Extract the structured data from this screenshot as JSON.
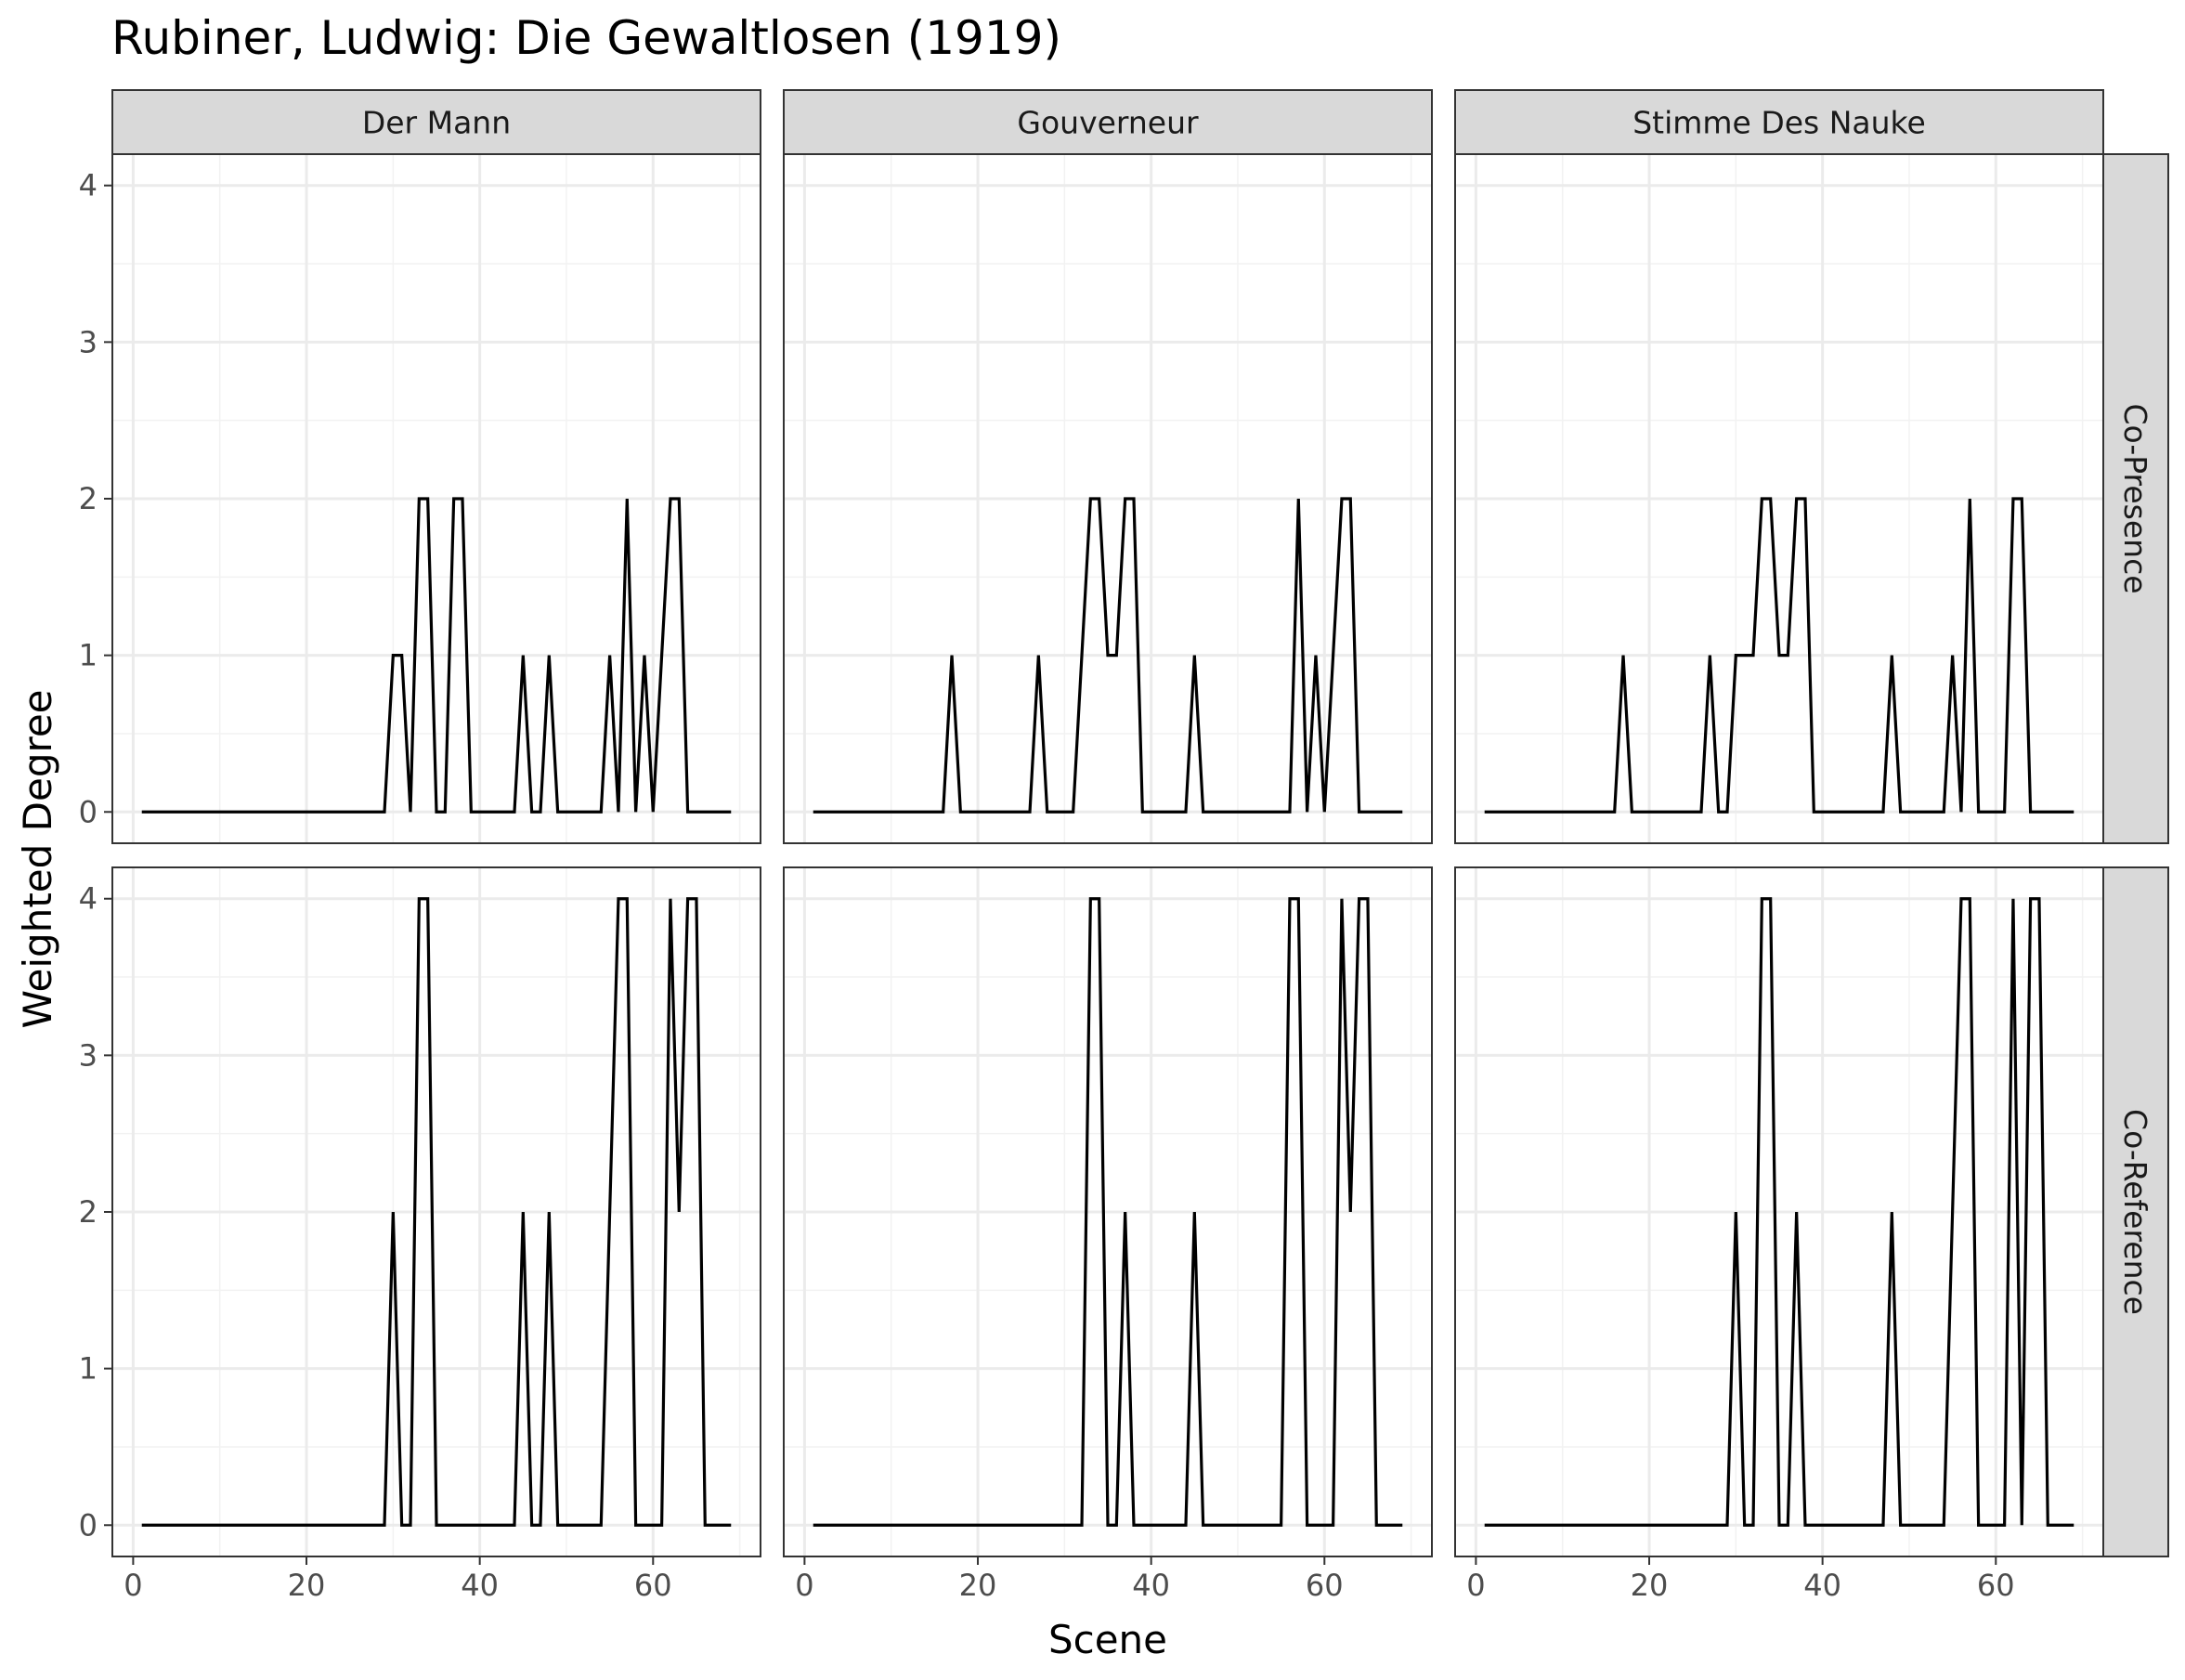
{
  "chart_data": {
    "type": "line",
    "title": "Rubiner, Ludwig: Die Gewaltlosen (1919)",
    "xlabel": "Scene",
    "ylabel": "Weighted Degree",
    "xlim": [
      1,
      69
    ],
    "ylim": [
      0,
      4
    ],
    "xticks": [
      0,
      20,
      40,
      60
    ],
    "yticks": [
      0,
      1,
      2,
      3,
      4
    ],
    "grid": true,
    "columns": [
      "Der Mann",
      "Gouverneur",
      "Stimme Des Nauke"
    ],
    "rows": [
      "Co-Presence",
      "Co-Reference"
    ],
    "panels": [
      {
        "column": "Der Mann",
        "row": "Co-Presence",
        "points": [
          [
            1,
            0
          ],
          [
            29,
            0
          ],
          [
            30,
            1
          ],
          [
            31,
            1
          ],
          [
            32,
            0
          ],
          [
            33,
            2
          ],
          [
            34,
            2
          ],
          [
            35,
            0
          ],
          [
            36,
            0
          ],
          [
            37,
            2
          ],
          [
            38,
            2
          ],
          [
            39,
            0
          ],
          [
            44,
            0
          ],
          [
            45,
            1
          ],
          [
            46,
            0
          ],
          [
            47,
            0
          ],
          [
            48,
            1
          ],
          [
            49,
            0
          ],
          [
            54,
            0
          ],
          [
            55,
            1
          ],
          [
            56,
            0
          ],
          [
            57,
            2
          ],
          [
            58,
            0
          ],
          [
            59,
            1
          ],
          [
            60,
            0
          ],
          [
            61,
            1
          ],
          [
            62,
            2
          ],
          [
            63,
            2
          ],
          [
            64,
            0
          ],
          [
            69,
            0
          ]
        ]
      },
      {
        "column": "Gouverneur",
        "row": "Co-Presence",
        "points": [
          [
            1,
            0
          ],
          [
            16,
            0
          ],
          [
            17,
            1
          ],
          [
            18,
            0
          ],
          [
            26,
            0
          ],
          [
            27,
            1
          ],
          [
            28,
            0
          ],
          [
            31,
            0
          ],
          [
            32,
            1
          ],
          [
            33,
            2
          ],
          [
            34,
            2
          ],
          [
            35,
            1
          ],
          [
            36,
            1
          ],
          [
            37,
            2
          ],
          [
            38,
            2
          ],
          [
            39,
            0
          ],
          [
            44,
            0
          ],
          [
            45,
            1
          ],
          [
            46,
            0
          ],
          [
            56,
            0
          ],
          [
            57,
            2
          ],
          [
            58,
            0
          ],
          [
            59,
            1
          ],
          [
            60,
            0
          ],
          [
            61,
            1
          ],
          [
            62,
            2
          ],
          [
            63,
            2
          ],
          [
            64,
            0
          ],
          [
            69,
            0
          ]
        ]
      },
      {
        "column": "Stimme Des Nauke",
        "row": "Co-Presence",
        "points": [
          [
            1,
            0
          ],
          [
            16,
            0
          ],
          [
            17,
            1
          ],
          [
            18,
            0
          ],
          [
            26,
            0
          ],
          [
            27,
            1
          ],
          [
            28,
            0
          ],
          [
            29,
            0
          ],
          [
            30,
            1
          ],
          [
            31,
            1
          ],
          [
            32,
            1
          ],
          [
            33,
            2
          ],
          [
            34,
            2
          ],
          [
            35,
            1
          ],
          [
            36,
            1
          ],
          [
            37,
            2
          ],
          [
            38,
            2
          ],
          [
            39,
            0
          ],
          [
            47,
            0
          ],
          [
            48,
            1
          ],
          [
            49,
            0
          ],
          [
            54,
            0
          ],
          [
            55,
            1
          ],
          [
            56,
            0
          ],
          [
            57,
            2
          ],
          [
            58,
            0
          ],
          [
            61,
            0
          ],
          [
            62,
            2
          ],
          [
            63,
            2
          ],
          [
            64,
            0
          ],
          [
            69,
            0
          ]
        ]
      },
      {
        "column": "Der Mann",
        "row": "Co-Reference",
        "points": [
          [
            1,
            0
          ],
          [
            29,
            0
          ],
          [
            30,
            2
          ],
          [
            31,
            0
          ],
          [
            32,
            0
          ],
          [
            33,
            4
          ],
          [
            34,
            4
          ],
          [
            35,
            0
          ],
          [
            44,
            0
          ],
          [
            45,
            2
          ],
          [
            46,
            0
          ],
          [
            47,
            0
          ],
          [
            48,
            2
          ],
          [
            49,
            0
          ],
          [
            54,
            0
          ],
          [
            55,
            2
          ],
          [
            56,
            4
          ],
          [
            57,
            4
          ],
          [
            58,
            0
          ],
          [
            61,
            0
          ],
          [
            62,
            4
          ],
          [
            63,
            2
          ],
          [
            64,
            4
          ],
          [
            65,
            4
          ],
          [
            66,
            0
          ],
          [
            69,
            0
          ]
        ]
      },
      {
        "column": "Gouverneur",
        "row": "Co-Reference",
        "points": [
          [
            1,
            0
          ],
          [
            32,
            0
          ],
          [
            33,
            4
          ],
          [
            34,
            4
          ],
          [
            35,
            0
          ],
          [
            36,
            0
          ],
          [
            37,
            2
          ],
          [
            38,
            0
          ],
          [
            44,
            0
          ],
          [
            45,
            2
          ],
          [
            46,
            0
          ],
          [
            55,
            0
          ],
          [
            56,
            4
          ],
          [
            57,
            4
          ],
          [
            58,
            0
          ],
          [
            61,
            0
          ],
          [
            62,
            4
          ],
          [
            63,
            2
          ],
          [
            64,
            4
          ],
          [
            65,
            4
          ],
          [
            66,
            0
          ],
          [
            69,
            0
          ]
        ]
      },
      {
        "column": "Stimme Des Nauke",
        "row": "Co-Reference",
        "points": [
          [
            1,
            0
          ],
          [
            29,
            0
          ],
          [
            30,
            2
          ],
          [
            31,
            0
          ],
          [
            32,
            0
          ],
          [
            33,
            4
          ],
          [
            34,
            4
          ],
          [
            35,
            0
          ],
          [
            36,
            0
          ],
          [
            37,
            2
          ],
          [
            38,
            0
          ],
          [
            47,
            0
          ],
          [
            48,
            2
          ],
          [
            49,
            0
          ],
          [
            54,
            0
          ],
          [
            55,
            2
          ],
          [
            56,
            4
          ],
          [
            57,
            4
          ],
          [
            58,
            0
          ],
          [
            61,
            0
          ],
          [
            62,
            4
          ],
          [
            63,
            0
          ],
          [
            64,
            4
          ],
          [
            65,
            4
          ],
          [
            66,
            0
          ],
          [
            69,
            0
          ]
        ]
      }
    ]
  }
}
